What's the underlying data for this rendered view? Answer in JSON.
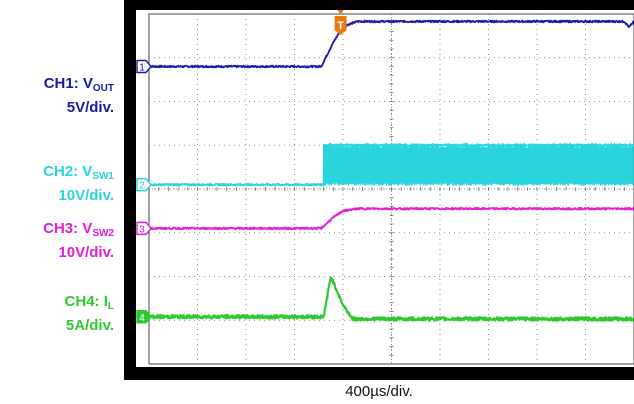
{
  "channels": [
    {
      "id": "1",
      "name_main": "CH1: V",
      "name_sub": "OUT",
      "scale": "5V/div.",
      "color": "#1a1aa8"
    },
    {
      "id": "2",
      "name_main": "CH2: V",
      "name_sub": "SW1",
      "scale": "10V/div.",
      "color": "#2ad4dc"
    },
    {
      "id": "3",
      "name_main": "CH3: V",
      "name_sub": "SW2",
      "scale": "10V/div.",
      "color": "#e020d8"
    },
    {
      "id": "4",
      "name_main": "CH4: I",
      "name_sub": "L",
      "scale": "5A/div.",
      "color": "#30c830"
    }
  ],
  "trigger": {
    "label": "T",
    "color": "#e8780c"
  },
  "timebase": "400µs/div.",
  "chart_data": {
    "type": "line",
    "xlabel": "400µs/div.",
    "x_unit": "div",
    "xlim": [
      0,
      10
    ],
    "ylim_div": [
      0,
      8
    ],
    "grid": true,
    "series": [
      {
        "name": "CH1: VOUT",
        "scale": "5V/div.",
        "baseline_div": 6.8,
        "x": [
          0,
          3.55,
          3.8,
          4.0,
          4.3,
          4.8,
          9.8,
          9.9,
          10
        ],
        "y_div": [
          6.8,
          6.8,
          7.35,
          7.72,
          7.83,
          7.83,
          7.83,
          7.7,
          7.83
        ]
      },
      {
        "name": "CH2: VSW1",
        "scale": "10V/div.",
        "baseline_div": 4.1,
        "x": [
          0,
          3.6,
          3.6,
          10
        ],
        "y_div": [
          4.1,
          4.1,
          5.0,
          5.0
        ],
        "switching_low_div": 4.1,
        "switching_high_div": 5.0
      },
      {
        "name": "CH3: VSW2",
        "scale": "10V/div.",
        "baseline_div": 3.1,
        "x": [
          0,
          3.55,
          3.8,
          4.0,
          4.3,
          10
        ],
        "y_div": [
          3.1,
          3.1,
          3.35,
          3.5,
          3.55,
          3.55
        ]
      },
      {
        "name": "CH4: IL",
        "scale": "5A/div.",
        "baseline_div": 1.08,
        "x": [
          0,
          3.6,
          3.75,
          4.0,
          4.2,
          4.5,
          10
        ],
        "y_div": [
          1.08,
          1.08,
          2.0,
          1.35,
          1.03,
          1.03,
          1.03
        ]
      }
    ]
  }
}
